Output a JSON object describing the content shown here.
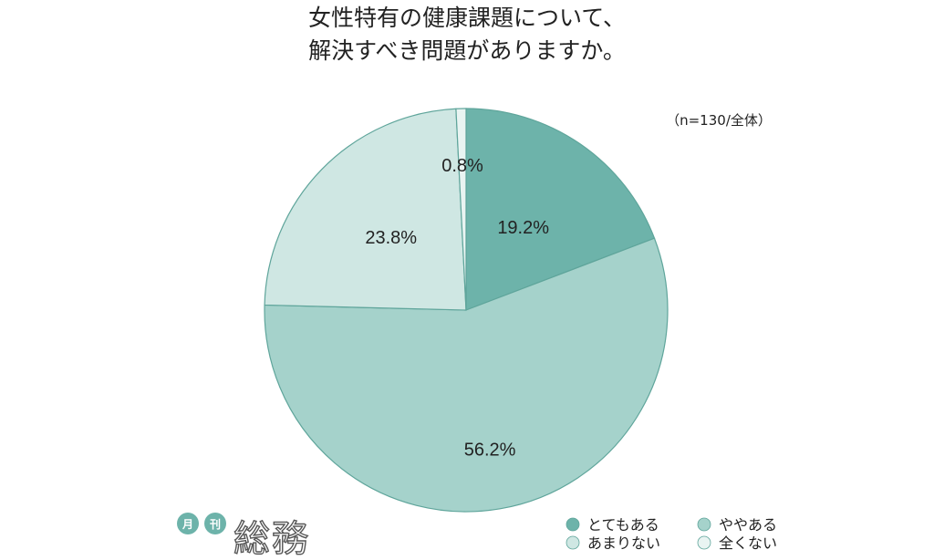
{
  "chart_data": {
    "type": "pie",
    "title_lines": [
      "女性特有の健康課題について、",
      "解決すべき問題がありますか。"
    ],
    "note": "（n=130/全体）",
    "unit": "%",
    "slices": [
      {
        "label": "とてもある",
        "value": 19.2,
        "value_label": "19.2%",
        "color": "#6db3aa"
      },
      {
        "label": "ややある",
        "value": 56.2,
        "value_label": "56.2%",
        "color": "#a5d2cb"
      },
      {
        "label": "あまりない",
        "value": 23.8,
        "value_label": "23.8%",
        "color": "#cfe7e3"
      },
      {
        "label": "全くない",
        "value": 0.8,
        "value_label": "0.8%",
        "color": "#e9f4f2"
      }
    ],
    "legend_position": "bottom-right",
    "start_angle": "12 o'clock",
    "direction": "clockwise"
  },
  "logo": {
    "badges": [
      "月",
      "刊"
    ],
    "text": "総務",
    "badge_color": "#6db3aa"
  },
  "colors": {
    "slice_stroke": "#5fa59b"
  }
}
